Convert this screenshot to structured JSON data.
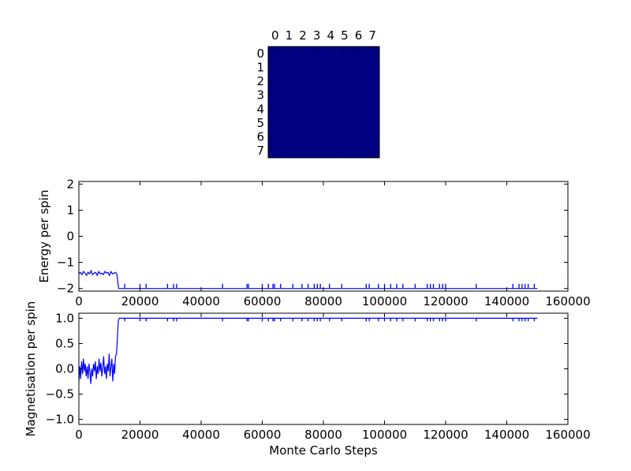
{
  "chart_data": [
    {
      "type": "heatmap",
      "title": "",
      "xticks": [
        "0",
        "1",
        "2",
        "3",
        "4",
        "5",
        "6",
        "7"
      ],
      "yticks": [
        "0",
        "1",
        "2",
        "3",
        "4",
        "5",
        "6",
        "7"
      ],
      "grid_size": [
        8,
        8
      ],
      "values": [
        [
          -1,
          -1,
          -1,
          -1,
          -1,
          -1,
          -1,
          -1
        ],
        [
          -1,
          -1,
          -1,
          -1,
          -1,
          -1,
          -1,
          -1
        ],
        [
          -1,
          -1,
          -1,
          -1,
          -1,
          -1,
          -1,
          -1
        ],
        [
          -1,
          -1,
          -1,
          -1,
          -1,
          -1,
          -1,
          -1
        ],
        [
          -1,
          -1,
          -1,
          -1,
          -1,
          -1,
          -1,
          -1
        ],
        [
          -1,
          -1,
          -1,
          -1,
          -1,
          -1,
          -1,
          -1
        ],
        [
          -1,
          -1,
          -1,
          -1,
          -1,
          -1,
          -1,
          -1
        ],
        [
          -1,
          -1,
          -1,
          -1,
          -1,
          -1,
          -1,
          -1
        ]
      ],
      "cell_color": "#000080"
    },
    {
      "type": "line",
      "ylabel": "Energy per spin",
      "xlim": [
        0,
        160000
      ],
      "ylim": [
        -2.1,
        2.1
      ],
      "xticks": [
        "0",
        "20000",
        "40000",
        "60000",
        "80000",
        "100000",
        "120000",
        "140000",
        "160000"
      ],
      "yticks": [
        "2",
        "1",
        "0",
        "−1",
        "−2"
      ],
      "series_color": "#0000ff",
      "series": [
        {
          "x": [
            0,
            500,
            1000,
            1500,
            2000,
            2500,
            3000,
            3500,
            4000,
            4500,
            5000,
            5500,
            6000,
            6500,
            7000,
            7500,
            8000,
            8500,
            9000,
            9500,
            10000,
            10500,
            11000,
            11500,
            12000,
            12500,
            12800,
            13000,
            150000
          ],
          "y": [
            -1.44,
            -1.38,
            -1.47,
            -1.35,
            -1.41,
            -1.5,
            -1.38,
            -1.44,
            -1.32,
            -1.47,
            -1.41,
            -1.38,
            -1.5,
            -1.35,
            -1.44,
            -1.41,
            -1.47,
            -1.35,
            -1.41,
            -1.38,
            -1.5,
            -1.35,
            -1.44,
            -1.41,
            -1.38,
            -1.47,
            -1.8,
            -2.0,
            -2.0
          ]
        }
      ],
      "spikes_x": [
        15000,
        20000,
        22000,
        29000,
        31000,
        32000,
        47000,
        55000,
        55500,
        60000,
        62000,
        63500,
        64000,
        66000,
        70000,
        73000,
        75000,
        77000,
        78000,
        79000,
        82000,
        86000,
        94000,
        95000,
        98000,
        100000,
        102000,
        104000,
        106000,
        110000,
        114000,
        115000,
        116000,
        118000,
        119000,
        120000,
        130000,
        142000,
        144000,
        145000,
        146000,
        147000,
        149000
      ],
      "spike_depth": 0.18
    },
    {
      "type": "line",
      "xlabel": "Monte Carlo Steps",
      "ylabel": "Magnetisation per spin",
      "xlim": [
        0,
        160000
      ],
      "ylim": [
        -1.1,
        1.1
      ],
      "xticks": [
        "0",
        "20000",
        "40000",
        "60000",
        "80000",
        "100000",
        "120000",
        "140000",
        "160000"
      ],
      "yticks": [
        "1.0",
        "0.5",
        "0.0",
        "−0.5",
        "−1.0"
      ],
      "series_color": "#0000ff",
      "series": [
        {
          "x": [
            0,
            300,
            600,
            900,
            1200,
            1500,
            1800,
            2100,
            2400,
            2700,
            3000,
            3300,
            3600,
            3900,
            4200,
            4500,
            4800,
            5100,
            5400,
            5700,
            6000,
            6300,
            6600,
            6900,
            7200,
            7500,
            7800,
            8100,
            8400,
            8700,
            9000,
            9300,
            9600,
            9900,
            10200,
            10500,
            10800,
            11100,
            11400,
            11700,
            12000,
            12300,
            12600,
            12900,
            13200,
            150000
          ],
          "y": [
            -0.25,
            0.05,
            -0.2,
            0.15,
            -0.1,
            0.2,
            -0.05,
            0.1,
            -0.15,
            0.05,
            -0.2,
            0.1,
            -0.05,
            -0.3,
            0.0,
            -0.15,
            0.1,
            -0.05,
            0.15,
            -0.2,
            0.05,
            -0.1,
            0.2,
            -0.05,
            0.12,
            -0.15,
            0.0,
            0.25,
            -0.1,
            0.05,
            -0.2,
            0.1,
            -0.05,
            0.3,
            -0.15,
            0.05,
            0.2,
            -0.25,
            0.1,
            -0.1,
            0.25,
            0.3,
            0.6,
            0.95,
            1.0,
            1.0
          ]
        }
      ],
      "spikes_x": [
        15000,
        20000,
        22000,
        29000,
        31000,
        32000,
        47000,
        55000,
        55500,
        60000,
        62000,
        63500,
        64000,
        66000,
        70000,
        73000,
        75000,
        77000,
        78000,
        79000,
        82000,
        86000,
        94000,
        95000,
        98000,
        100000,
        102000,
        104000,
        106000,
        110000,
        114000,
        115000,
        116000,
        118000,
        119000,
        120000,
        130000,
        142000,
        144000,
        145000,
        146000,
        147000,
        149000
      ],
      "spike_depth": 0.06
    }
  ]
}
